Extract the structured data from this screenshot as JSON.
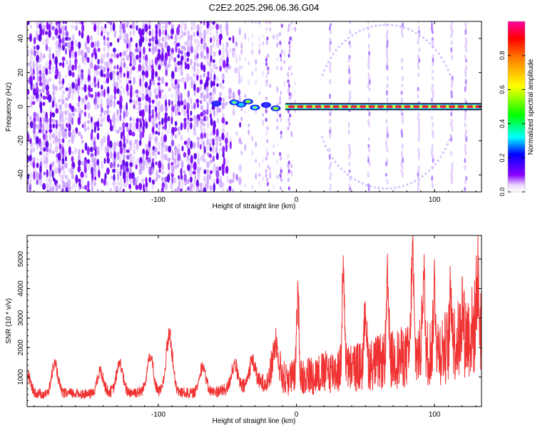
{
  "title": "C2E2.2025.296.06.36.G04",
  "chart_data": [
    {
      "type": "heatmap",
      "xlabel": "Height of straight line (km)",
      "ylabel": "Frequency (Hz)",
      "xlim": [
        -195,
        134
      ],
      "ylim": [
        -50,
        50
      ],
      "xticks": [
        -100,
        0,
        100
      ],
      "yticks": [
        -40,
        -20,
        0,
        20,
        40
      ],
      "colorbar": {
        "label": "Normalized spectral amplitude",
        "range": [
          0,
          1
        ],
        "ticks": [
          "0.0",
          "0.2",
          "0.4",
          "0.6",
          "0.8"
        ]
      },
      "features": {
        "carrier_line": {
          "frequency": 0,
          "x_start": -8,
          "x_end": 134,
          "amplitude": 0.85
        },
        "transition_blobs": [
          {
            "x": -58,
            "y": 1.8,
            "amplitude": 0.25
          },
          {
            "x": -45,
            "y": 2.5,
            "amplitude": 0.45
          },
          {
            "x": -40,
            "y": 1.2,
            "amplitude": 0.4
          },
          {
            "x": -35,
            "y": 3.0,
            "amplitude": 0.5
          },
          {
            "x": -30,
            "y": -0.5,
            "amplitude": 0.45
          },
          {
            "x": -22,
            "y": 1.0,
            "amplitude": 0.35
          },
          {
            "x": -15,
            "y": -1.0,
            "amplitude": 0.5
          }
        ],
        "stripes_x": [
          24,
          38,
          52,
          65,
          76,
          88,
          98,
          112,
          122
        ],
        "noise_region_x": [
          -195,
          -50
        ],
        "arc": {
          "center_x": 65,
          "half_width": 50,
          "top_y": 48,
          "bottom_y": -48
        }
      }
    },
    {
      "type": "line",
      "xlabel": "Height of straight line (km)",
      "ylabel": "SNR (10 * v/v)",
      "xlim": [
        -195,
        134
      ],
      "ylim": [
        0,
        5800
      ],
      "xticks": [
        -100,
        0,
        100
      ],
      "yticks": [
        1000,
        2000,
        3000,
        4000,
        5000
      ],
      "color": "#f03232",
      "envelope": {
        "x": [
          -195,
          -180,
          -165,
          -150,
          -135,
          -120,
          -105,
          -90,
          -75,
          -60,
          -45,
          -30,
          -15,
          0,
          15,
          30,
          45,
          60,
          75,
          90,
          105,
          120,
          134
        ],
        "baseline": [
          500,
          400,
          450,
          420,
          500,
          480,
          520,
          500,
          450,
          500,
          600,
          750,
          900,
          1000,
          1100,
          1250,
          1350,
          1500,
          1650,
          1800,
          1950,
          2300,
          2800
        ]
      },
      "peaks": [
        {
          "x": -195,
          "y": 1200
        },
        {
          "x": -175,
          "y": 1600
        },
        {
          "x": -142,
          "y": 1300
        },
        {
          "x": -128,
          "y": 1600
        },
        {
          "x": -106,
          "y": 1900
        },
        {
          "x": -92,
          "y": 2750
        },
        {
          "x": -68,
          "y": 1550
        },
        {
          "x": -45,
          "y": 1550
        },
        {
          "x": -32,
          "y": 1700
        },
        {
          "x": -15,
          "y": 2300
        },
        {
          "x": 1,
          "y": 4200
        },
        {
          "x": 34,
          "y": 5150
        },
        {
          "x": 50,
          "y": 3600
        },
        {
          "x": 66,
          "y": 4400
        },
        {
          "x": 84,
          "y": 5750
        },
        {
          "x": 92,
          "y": 5000
        },
        {
          "x": 100,
          "y": 4300
        },
        {
          "x": 112,
          "y": 4150
        },
        {
          "x": 120,
          "y": 3600
        },
        {
          "x": 131,
          "y": 4450
        }
      ]
    }
  ]
}
